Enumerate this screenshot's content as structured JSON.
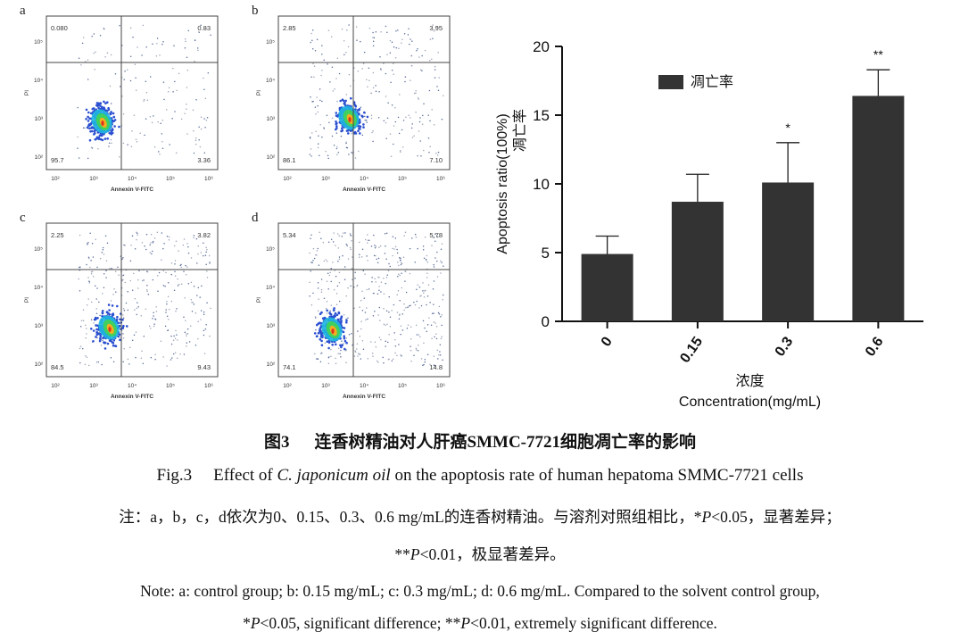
{
  "panels": [
    {
      "label": "a",
      "q_ul": "0.080",
      "q_ur": "0.83",
      "q_ll": "95.7",
      "q_lr": "3.36",
      "y_axis": "PI",
      "x_axis": "Annexin V-FITC"
    },
    {
      "label": "b",
      "q_ul": "2.85",
      "q_ur": "3.95",
      "q_ll": "86.1",
      "q_lr": "7.10",
      "y_axis": "PI",
      "x_axis": "Annexin V-FITC"
    },
    {
      "label": "c",
      "q_ul": "2.25",
      "q_ur": "3.82",
      "q_ll": "84.5",
      "q_lr": "9.43",
      "y_axis": "PI",
      "x_axis": "Annexin V-FITC"
    },
    {
      "label": "d",
      "q_ul": "5.34",
      "q_ur": "5.78",
      "q_ll": "74.1",
      "q_lr": "14.8",
      "y_axis": "PI",
      "x_axis": "Annexin V-FITC"
    }
  ],
  "scatter_ticks": {
    "x": [
      "10²",
      "10³",
      "10⁴",
      "10⁵",
      "10⁶"
    ],
    "y": [
      "10²",
      "10³",
      "10⁴",
      "10⁵"
    ]
  },
  "chart_data": {
    "type": "bar",
    "categories": [
      "0",
      "0.15",
      "0.3",
      "0.6"
    ],
    "values": [
      4.9,
      8.7,
      10.1,
      16.4
    ],
    "errors": [
      1.3,
      2.0,
      2.9,
      1.9
    ],
    "significance": [
      "",
      "",
      "*",
      "**"
    ],
    "ylim": [
      0,
      20
    ],
    "yticks": [
      "0",
      "5",
      "10",
      "15",
      "20"
    ],
    "ylabel_en": "Apoptosis ratio(100%)",
    "ylabel_cn": "凋亡率",
    "xlabel_cn": "浓度",
    "xlabel_en": "Concentration(mg/mL)",
    "legend": "凋亡率",
    "bar_color": "#333333"
  },
  "caption": {
    "cn_prefix": "图3",
    "cn_title": "连香树精油对人肝癌SMMC-7721细胞凋亡率的影响",
    "en_prefix": "Fig.3",
    "en_pre": "Effect of ",
    "en_italic": "C. japonicum oil",
    "en_post": " on the apoptosis rate of human hepatoma SMMC-7721 cells"
  },
  "notes": {
    "cn_line1_a": "注：a，b，c，d依次为0、0.15、0.3、0.6 mg/mL的连香树精油。与溶剂对照组相比，*",
    "cn_line1_p": "P",
    "cn_line1_b": "<0.05，显著差异；",
    "cn_line2_a": "**",
    "cn_line2_p": "P",
    "cn_line2_b": "<0.01，极显著差异。",
    "en_line1": "Note: a: control group; b: 0.15 mg/mL; c: 0.3 mg/mL; d: 0.6 mg/mL. Compared to the solvent control group,",
    "en_line2_a": "*",
    "en_line2_p1": "P",
    "en_line2_b": "<0.05, significant difference; **",
    "en_line2_p2": "P",
    "en_line2_c": "<0.01, extremely significant difference."
  }
}
